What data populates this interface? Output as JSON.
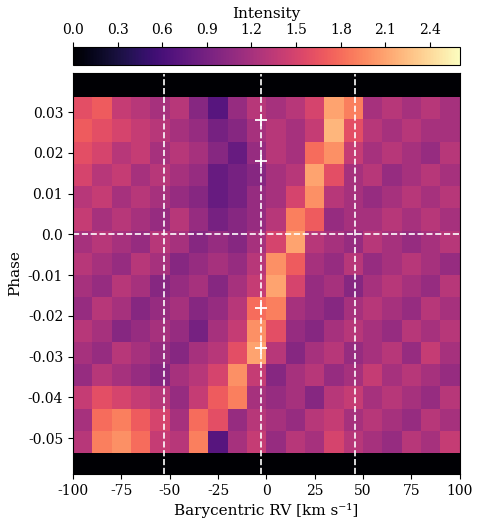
{
  "chart_data": {
    "type": "heatmap",
    "xlabel": "Barycentric RV [km s⁻¹]",
    "ylabel": "Phase",
    "colorbar_label": "Intensity",
    "xlim": [
      -100,
      100
    ],
    "xticks": [
      -100,
      -75,
      -50,
      -25,
      0,
      25,
      50,
      75,
      100
    ],
    "ylim": [
      -0.0588,
      0.0396
    ],
    "yticks": [
      -0.05,
      -0.04,
      -0.03,
      -0.02,
      -0.01,
      0.0,
      0.01,
      0.02,
      0.03
    ],
    "colorbar_lim": [
      0.0,
      2.6
    ],
    "colorbar_ticks": [
      0.0,
      0.3,
      0.6,
      0.9,
      1.2,
      1.5,
      1.8,
      2.1,
      2.4
    ],
    "x_edges": [
      -100,
      -90,
      -80,
      -70,
      -60,
      -50,
      -40,
      -30,
      -20,
      -10,
      0,
      10,
      20,
      30,
      40,
      50,
      60,
      70,
      80,
      90,
      100
    ],
    "y_edges": [
      -0.0588,
      -0.0537,
      -0.04824,
      -0.04278,
      -0.03732,
      -0.03186,
      -0.0264,
      -0.02094,
      -0.01548,
      -0.01002,
      -0.00456,
      0.0009,
      0.00636,
      0.01182,
      0.01728,
      0.02274,
      0.0282,
      0.0337,
      0.0396
    ],
    "cells": [
      [
        0.0,
        0.0,
        0.0,
        0.0,
        0.0,
        0.0,
        0.0,
        0.0,
        0.0,
        0.0,
        0.0,
        0.0,
        0.0,
        0.0,
        0.0,
        0.0,
        0.0,
        0.0,
        0.0,
        0.0
      ],
      [
        1.3,
        1.9,
        2.0,
        1.8,
        1.4,
        1.3,
        1.9,
        0.7,
        1.2,
        1.4,
        1.1,
        1.3,
        1.2,
        1.5,
        1.3,
        1.2,
        1.1,
        1.3,
        1.2,
        1.4
      ],
      [
        1.2,
        1.8,
        1.9,
        1.7,
        1.5,
        1.2,
        1.8,
        1.6,
        1.1,
        1.3,
        1.2,
        1.1,
        1.3,
        1.4,
        1.2,
        1.3,
        1.2,
        1.1,
        1.3,
        1.2
      ],
      [
        1.4,
        1.6,
        1.5,
        1.4,
        1.3,
        1.1,
        1.4,
        1.7,
        1.9,
        1.2,
        1.1,
        1.2,
        1.0,
        1.3,
        1.4,
        1.2,
        1.3,
        1.2,
        1.1,
        1.3
      ],
      [
        1.1,
        1.3,
        1.2,
        1.1,
        1.0,
        1.2,
        1.3,
        1.5,
        2.0,
        1.4,
        1.0,
        1.2,
        1.3,
        1.1,
        1.2,
        1.4,
        1.2,
        1.3,
        1.2,
        1.1
      ],
      [
        1.2,
        1.1,
        1.3,
        1.2,
        1.1,
        1.0,
        1.2,
        1.3,
        1.6,
        2.1,
        1.3,
        1.0,
        1.2,
        1.3,
        1.1,
        1.2,
        1.3,
        1.1,
        1.4,
        1.2
      ],
      [
        1.3,
        1.2,
        1.0,
        1.1,
        1.2,
        1.1,
        0.9,
        1.2,
        1.4,
        2.0,
        1.6,
        1.1,
        1.0,
        1.2,
        1.3,
        1.2,
        1.1,
        1.3,
        1.2,
        1.3
      ],
      [
        1.1,
        1.3,
        1.2,
        1.0,
        1.1,
        1.2,
        1.0,
        1.1,
        1.3,
        1.8,
        1.9,
        1.2,
        1.1,
        1.0,
        1.2,
        1.3,
        1.2,
        1.1,
        1.3,
        1.2
      ],
      [
        1.2,
        1.1,
        1.3,
        1.2,
        1.0,
        1.1,
        1.2,
        1.0,
        1.2,
        1.4,
        2.1,
        1.5,
        1.1,
        1.2,
        1.0,
        1.2,
        1.3,
        1.2,
        1.1,
        1.3
      ],
      [
        1.3,
        1.2,
        1.1,
        1.3,
        1.2,
        1.0,
        1.1,
        1.2,
        1.1,
        1.3,
        2.0,
        1.7,
        1.2,
        1.1,
        1.3,
        1.1,
        1.2,
        1.3,
        1.2,
        1.1
      ],
      [
        1.2,
        1.3,
        1.2,
        1.1,
        1.3,
        1.2,
        1.0,
        1.1,
        1.0,
        1.2,
        1.5,
        2.1,
        1.3,
        1.2,
        1.1,
        1.3,
        1.2,
        1.1,
        1.2,
        1.3
      ],
      [
        1.4,
        1.2,
        1.3,
        1.2,
        1.1,
        1.3,
        1.1,
        0.9,
        1.0,
        1.1,
        1.3,
        1.9,
        1.7,
        1.1,
        1.2,
        1.2,
        1.3,
        1.2,
        1.3,
        1.2
      ],
      [
        1.3,
        1.4,
        1.2,
        1.3,
        1.2,
        1.1,
        1.0,
        0.8,
        0.9,
        1.1,
        1.2,
        1.5,
        2.0,
        1.3,
        1.2,
        1.1,
        1.2,
        1.3,
        1.2,
        1.3
      ],
      [
        1.5,
        1.3,
        1.4,
        1.2,
        1.3,
        1.2,
        1.1,
        0.8,
        0.9,
        1.0,
        1.2,
        1.3,
        2.1,
        1.6,
        1.2,
        1.3,
        1.1,
        1.2,
        1.3,
        1.2
      ],
      [
        1.6,
        1.5,
        1.3,
        1.4,
        1.2,
        1.3,
        1.2,
        1.0,
        0.8,
        1.1,
        1.3,
        1.2,
        1.8,
        2.0,
        1.4,
        1.2,
        1.3,
        1.2,
        1.1,
        1.3
      ],
      [
        1.7,
        1.6,
        1.5,
        1.4,
        1.3,
        1.2,
        1.1,
        0.9,
        1.0,
        1.2,
        1.3,
        1.2,
        1.4,
        2.2,
        1.6,
        1.3,
        1.2,
        1.3,
        1.2,
        1.2
      ],
      [
        1.6,
        1.7,
        1.4,
        1.3,
        1.2,
        1.3,
        1.0,
        0.7,
        1.1,
        1.3,
        1.2,
        1.3,
        1.5,
        2.1,
        1.9,
        1.2,
        1.3,
        1.2,
        1.3,
        1.2
      ],
      [
        0.0,
        0.0,
        0.0,
        0.0,
        0.0,
        0.0,
        0.0,
        0.0,
        0.0,
        0.0,
        0.0,
        0.0,
        0.0,
        0.0,
        0.0,
        0.0,
        0.0,
        0.0,
        0.0,
        0.0
      ]
    ],
    "vlines": [
      -53,
      -3,
      46
    ],
    "hlines": [
      0.0
    ],
    "markers": {
      "x": [
        -3,
        -3,
        -3,
        -3
      ],
      "y": [
        0.028,
        0.018,
        -0.018,
        -0.028
      ]
    }
  }
}
